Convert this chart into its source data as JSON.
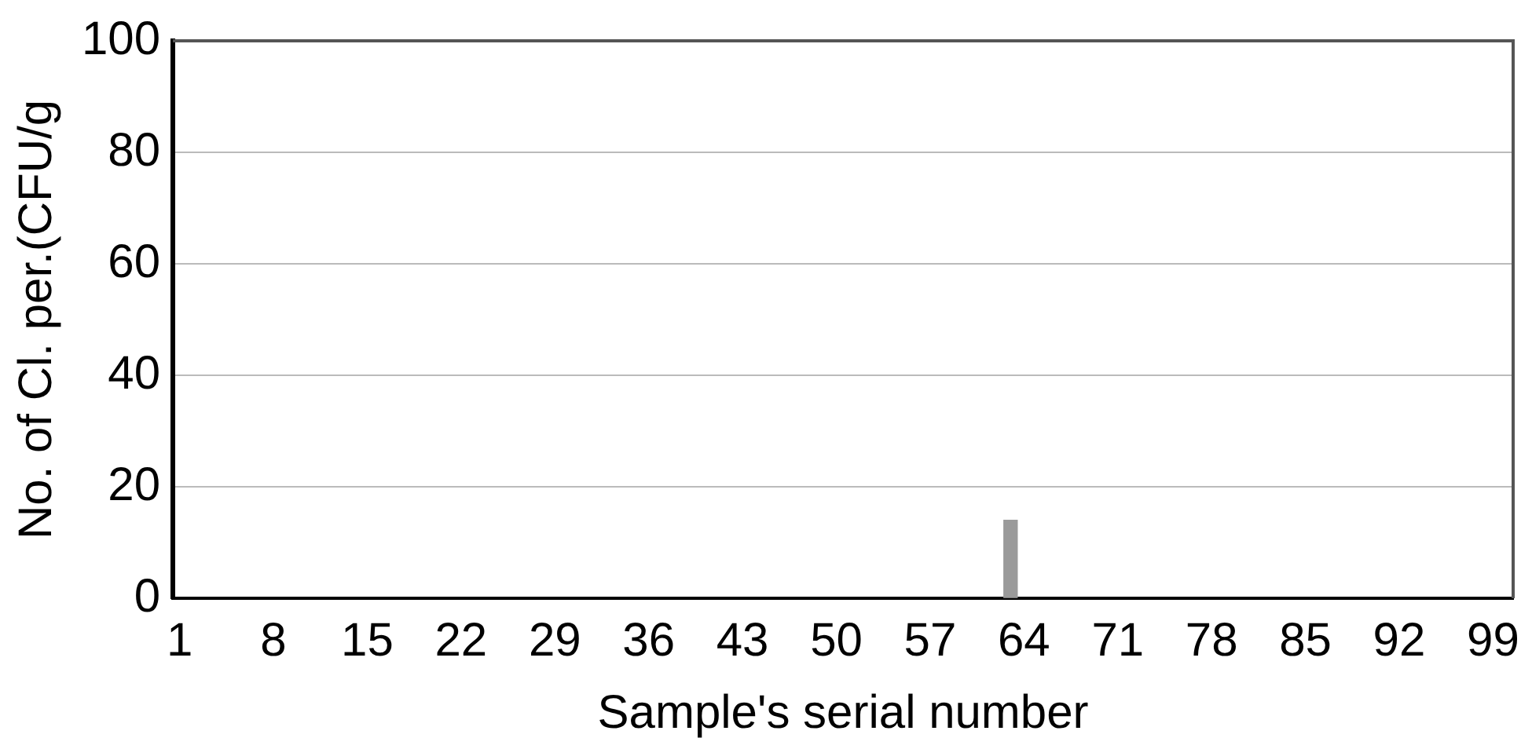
{
  "chart_data": {
    "type": "bar",
    "xlabel": "Sample's serial number",
    "ylabel": "No. of Cl. per.(CFU/g",
    "categories": [
      "1",
      null,
      null,
      null,
      null,
      null,
      null,
      "8",
      null,
      null,
      null,
      null,
      null,
      null,
      "15",
      null,
      null,
      null,
      null,
      null,
      null,
      "22",
      null,
      null,
      null,
      null,
      null,
      null,
      "29",
      null,
      null,
      null,
      null,
      null,
      null,
      "36",
      null,
      null,
      null,
      null,
      null,
      null,
      "43",
      null,
      null,
      null,
      null,
      null,
      null,
      "50",
      null,
      null,
      null,
      null,
      null,
      null,
      "57",
      null,
      null,
      null,
      null,
      null,
      null,
      "64",
      null,
      null,
      null,
      null,
      null,
      null,
      "71",
      null,
      null,
      null,
      null,
      null,
      null,
      "78",
      null,
      null,
      null,
      null,
      null,
      null,
      "85",
      null,
      null,
      null,
      null,
      null,
      null,
      "92",
      null,
      null,
      null,
      null,
      null,
      null,
      "99",
      null
    ],
    "values": [
      null,
      null,
      null,
      null,
      null,
      null,
      null,
      null,
      null,
      null,
      null,
      null,
      null,
      null,
      null,
      null,
      null,
      null,
      null,
      null,
      null,
      null,
      null,
      null,
      null,
      null,
      null,
      null,
      null,
      null,
      null,
      null,
      null,
      null,
      null,
      null,
      null,
      null,
      null,
      null,
      null,
      null,
      null,
      null,
      null,
      null,
      null,
      null,
      null,
      null,
      null,
      null,
      null,
      null,
      null,
      null,
      null,
      null,
      null,
      null,
      null,
      null,
      14,
      null,
      null,
      null,
      null,
      null,
      null,
      null,
      null,
      null,
      null,
      null,
      null,
      null,
      null,
      null,
      null,
      null,
      null,
      null,
      null,
      null,
      null,
      null,
      null,
      null,
      null,
      null,
      null,
      null,
      null,
      null,
      null,
      null,
      null,
      null,
      null,
      null
    ],
    "color": "#9a9a9a",
    "ylim": [
      0,
      100
    ],
    "yticks": [
      0,
      20,
      40,
      60,
      80,
      100
    ],
    "grid": "y",
    "legend": false
  }
}
